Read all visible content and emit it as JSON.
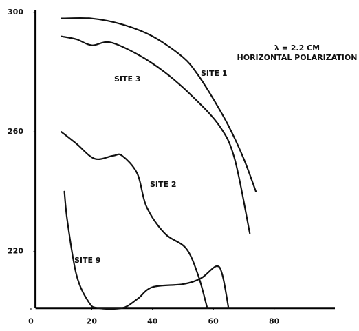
{
  "chart_data": {
    "type": "line",
    "annotations": [
      "λ = 2.2 CM",
      "HORIZONTAL POLARIZATION"
    ],
    "series": [
      {
        "name": "SITE 1",
        "color": "#111111",
        "x": [
          10,
          20,
          30,
          40,
          50,
          55,
          60,
          65,
          70,
          74
        ],
        "values": [
          298,
          298,
          296,
          292,
          285,
          279,
          271,
          262,
          251,
          240
        ]
      },
      {
        "name": "SITE 3",
        "color": "#111111",
        "x": [
          10,
          15,
          20,
          26,
          35,
          44,
          53,
          62,
          67,
          72
        ],
        "values": [
          292,
          291,
          289,
          290,
          286,
          280,
          272,
          262,
          251,
          226
        ]
      },
      {
        "name": "SITE 2",
        "color": "#111111",
        "x": [
          10,
          15,
          21,
          27,
          30,
          35,
          38,
          44,
          51,
          55,
          58
        ],
        "values": [
          260,
          256,
          251,
          252,
          252,
          246,
          235,
          226,
          221,
          212,
          201
        ]
      },
      {
        "name": "SITE 9",
        "color": "#111111",
        "x": [
          11,
          12,
          15,
          19,
          22,
          30,
          35,
          40,
          50,
          56,
          61,
          63,
          65
        ],
        "values": [
          240,
          230,
          212,
          203,
          201,
          201,
          204,
          208,
          209,
          211,
          215,
          212,
          201
        ]
      }
    ],
    "xlim": [
      1.5,
      100
    ],
    "xticks": [
      0,
      20,
      40,
      60,
      80
    ],
    "ylim": [
      201,
      300
    ],
    "yticks": [
      220,
      260,
      300
    ],
    "grid": false
  }
}
